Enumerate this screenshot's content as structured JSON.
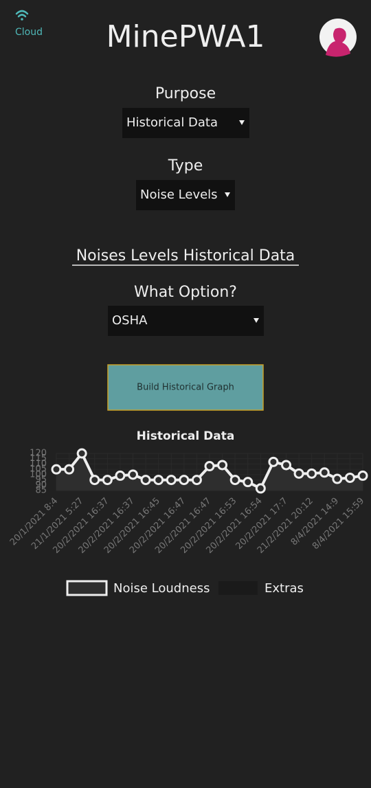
{
  "status": {
    "label": "Cloud"
  },
  "header": {
    "title": "MinePWA1"
  },
  "form": {
    "purpose_label": "Purpose",
    "purpose_value": "Historical Data",
    "type_label": "Type",
    "type_value": "Noise Levels",
    "section_title": "Noises Levels Historical Data",
    "option_label": "What Option?",
    "option_value": "OSHA",
    "button": "Build Historical Graph"
  },
  "chart_data": {
    "type": "line",
    "title": "Historical Data",
    "categories": [
      "20/1/2021 8:4",
      null,
      "21/1/2021 5:27",
      null,
      "20/2/2021 16:37",
      null,
      "20/2/2021 16:37",
      null,
      "20/2/2021 16:45",
      null,
      "20/2/2021 16:47",
      null,
      "20/2/2021 16:47",
      null,
      "20/2/2021 16:53",
      null,
      "20/2/2021 16:54",
      null,
      "20/2/2021 17:7",
      null,
      "21/2/2021 20:12",
      null,
      "8/4/2021 14:9",
      null,
      "8/4/2021 15:59"
    ],
    "series": [
      {
        "name": "Noise Loudness",
        "color": "#eeeeee",
        "fill": "#2e2e2e",
        "values": [
          105,
          105,
          120,
          95,
          95,
          99,
          100,
          95,
          95,
          95,
          95,
          95,
          108,
          109,
          95,
          93,
          87,
          112,
          109,
          101,
          101,
          102,
          96,
          97,
          99
        ]
      },
      {
        "name": "Extras",
        "color": "#1a1a1a"
      }
    ],
    "ylim": [
      85,
      120
    ],
    "yticks": [
      85,
      90,
      95,
      100,
      105,
      110,
      115,
      120
    ],
    "grid": true
  }
}
